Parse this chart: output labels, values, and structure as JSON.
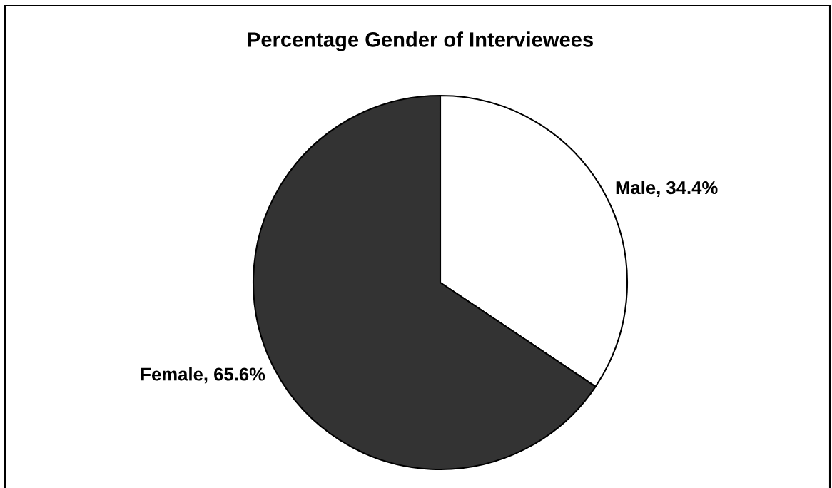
{
  "chart_data": {
    "type": "pie",
    "title": "Percentage Gender of Interviewees",
    "categories": [
      "Male",
      "Female"
    ],
    "values": [
      34.4,
      65.6
    ],
    "colors": [
      "#ffffff",
      "#333333"
    ],
    "value_labels": [
      "34.4%",
      "65.6%"
    ]
  }
}
